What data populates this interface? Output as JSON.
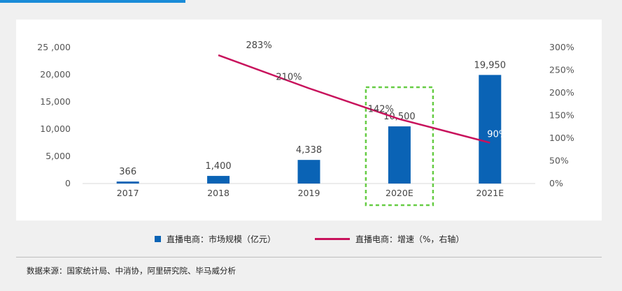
{
  "chart_data": {
    "type": "bar+line",
    "categories": [
      "2017",
      "2018",
      "2019",
      "2020E",
      "2021E"
    ],
    "bar_series": {
      "name": "直播电商：市场规模（亿元）",
      "values": [
        366,
        1400,
        4338,
        10500,
        19950
      ],
      "labels": [
        "366",
        "1,400",
        "4,338",
        "10,500",
        "19,950"
      ],
      "color": "#0a63b5"
    },
    "line_series": {
      "name": "直播电商：增速（%，右轴）",
      "categories": [
        "2018",
        "2019",
        "2020E",
        "2021E"
      ],
      "values": [
        283,
        210,
        142,
        90
      ],
      "labels": [
        "283%",
        "210%",
        "142%",
        "90%"
      ],
      "color": "#c8125c"
    },
    "y_left": {
      "ylim": [
        0,
        25000
      ],
      "ticks": [
        "0",
        "5,000",
        "10,000",
        "15,000",
        "20,000",
        "25 ,000"
      ]
    },
    "y_right": {
      "ylim": [
        0,
        300
      ],
      "ticks": [
        "0%",
        "50%",
        "100%",
        "150%",
        "200%",
        "250%",
        "300%"
      ]
    },
    "highlight": {
      "category": "2020E",
      "color": "#66cc44"
    }
  },
  "source": "数据来源：国家统计局、中消协，阿里研究院、毕马威分析"
}
